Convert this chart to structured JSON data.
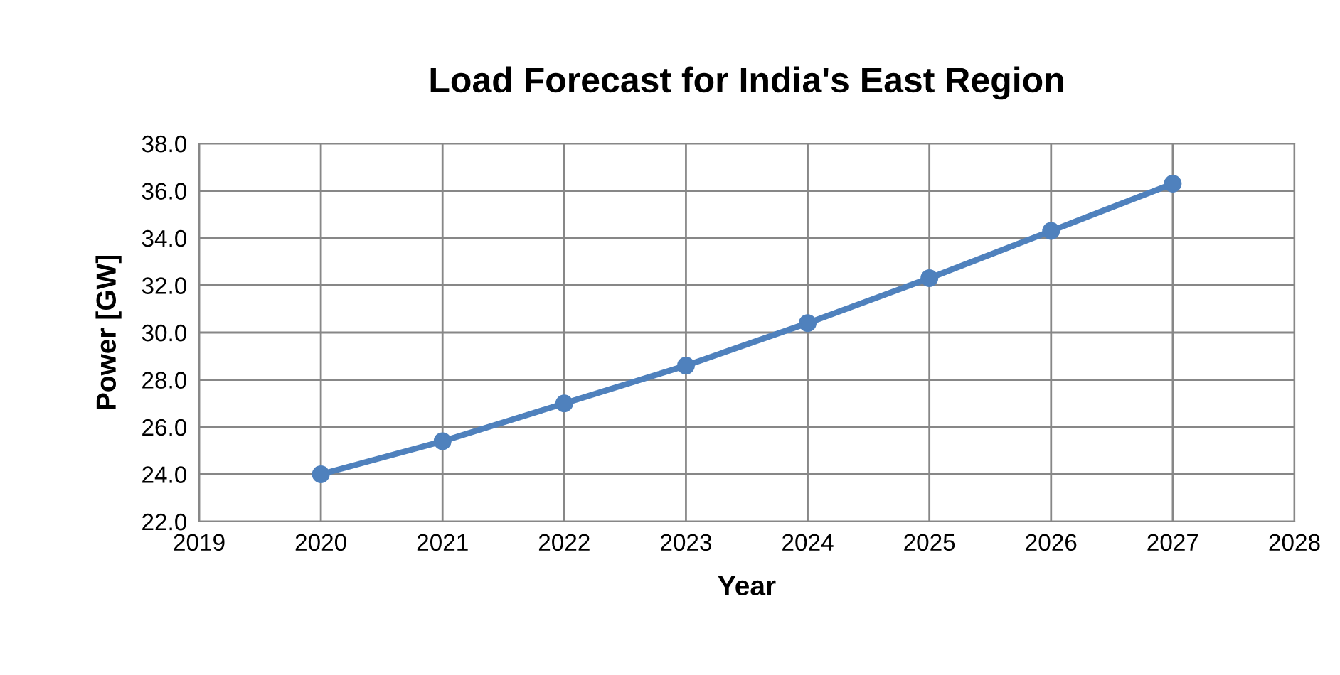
{
  "chart_data": {
    "type": "line",
    "title": "Load Forecast for India's East Region",
    "xlabel": "Year",
    "ylabel": "Power [GW]",
    "x": [
      2020,
      2021,
      2022,
      2023,
      2024,
      2025,
      2026,
      2027
    ],
    "series": [
      {
        "color": "#4f81bd",
        "values": [
          24.0,
          25.4,
          27.0,
          28.6,
          30.4,
          32.3,
          34.3,
          36.3
        ]
      }
    ],
    "xlim": [
      2019,
      2028
    ],
    "xticks": [
      2019,
      2020,
      2021,
      2022,
      2023,
      2024,
      2025,
      2026,
      2027,
      2028
    ],
    "ylim": [
      22,
      38
    ],
    "yticks": [
      {
        "value": 22,
        "label": "22.0"
      },
      {
        "value": 24,
        "label": "24.0"
      },
      {
        "value": 26,
        "label": "26.0"
      },
      {
        "value": 28,
        "label": "28.0"
      },
      {
        "value": 30,
        "label": "30.0"
      },
      {
        "value": 32,
        "label": "32.0"
      },
      {
        "value": 34,
        "label": "34.0"
      },
      {
        "value": 36,
        "label": "36.0"
      },
      {
        "value": 38,
        "label": "38.0"
      }
    ],
    "grid": true,
    "marker": "circle",
    "line_style": "solid"
  }
}
